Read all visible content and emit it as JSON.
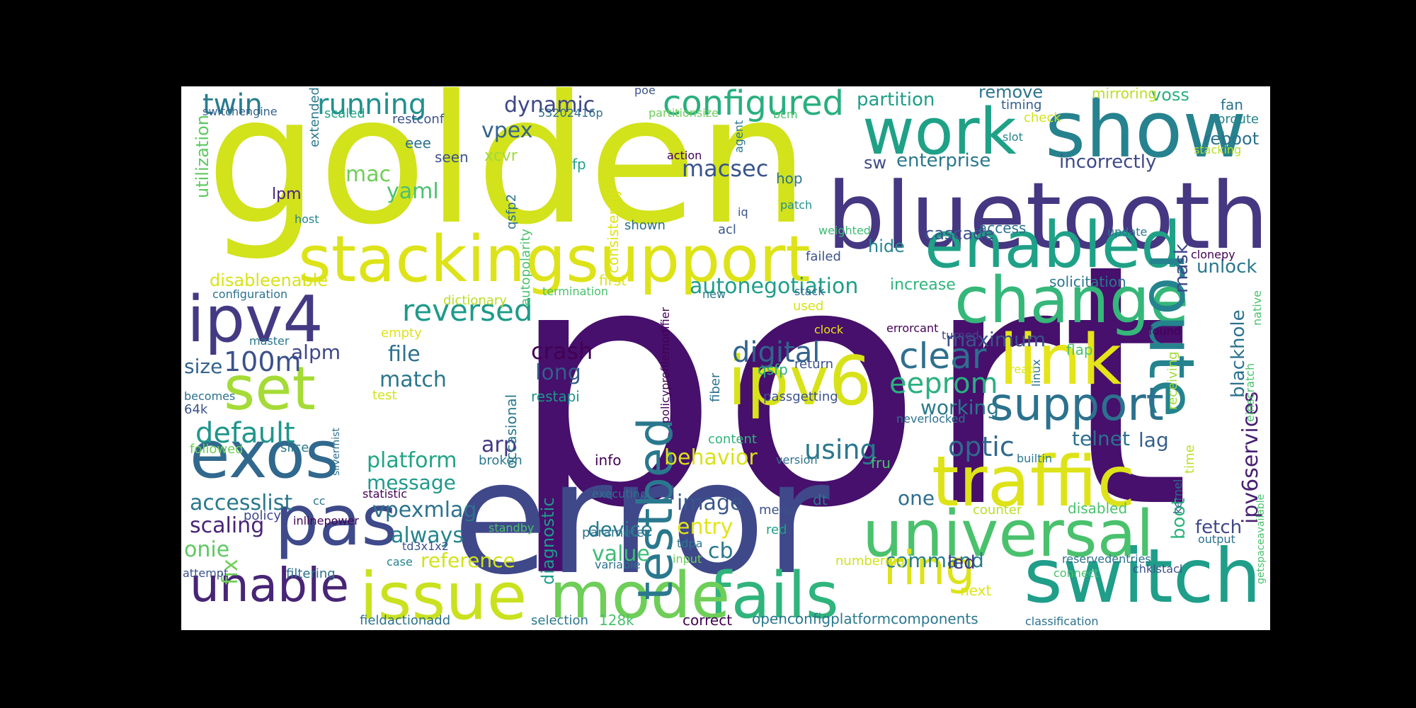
{
  "palette": [
    "#440154",
    "#46327e",
    "#365c8d",
    "#277f8e",
    "#1fa187",
    "#4ac16d",
    "#a0da39",
    "#dde318"
  ],
  "words": [
    {
      "text": "port",
      "color": "#46106c"
    },
    {
      "text": "golden",
      "color": "#d2e21b"
    },
    {
      "text": "error",
      "color": "#3f4889"
    },
    {
      "text": "bluetooth",
      "color": "#453781"
    },
    {
      "text": "show",
      "color": "#26828e"
    },
    {
      "text": "switch",
      "color": "#1f9e89"
    },
    {
      "text": "stackingsupport",
      "color": "#dde318"
    },
    {
      "text": "fails",
      "color": "#2fb47c"
    },
    {
      "text": "mode",
      "color": "#6ece58"
    },
    {
      "text": "traffic",
      "color": "#dde318"
    },
    {
      "text": "universal",
      "color": "#4ac16d"
    },
    {
      "text": "work",
      "color": "#1fa187"
    },
    {
      "text": "change",
      "color": "#35b779"
    },
    {
      "text": "enabled",
      "color": "#1fa187"
    },
    {
      "text": "route",
      "color": "#25838e"
    },
    {
      "text": "link",
      "color": "#e5e419"
    },
    {
      "text": "ipv6",
      "color": "#d8e219"
    },
    {
      "text": "issue",
      "color": "#cae11f"
    },
    {
      "text": "pas",
      "color": "#3e4a89"
    },
    {
      "text": "exos",
      "color": "#31688e"
    },
    {
      "text": "ipv4",
      "color": "#443a83"
    },
    {
      "text": "set",
      "color": "#a5db36"
    },
    {
      "text": "unable",
      "color": "#482576"
    },
    {
      "text": "ring",
      "color": "#dde318"
    },
    {
      "text": "testbed",
      "color": "#2a788e"
    },
    {
      "text": "support",
      "color": "#2c718e"
    },
    {
      "text": "configured",
      "color": "#29af7f"
    },
    {
      "text": "reversed",
      "color": "#1e9b8a"
    },
    {
      "text": "digital",
      "color": "#33638d"
    },
    {
      "text": "clear",
      "color": "#2e6f8e"
    },
    {
      "text": "default",
      "color": "#1f968b"
    },
    {
      "text": "running",
      "color": "#21908d"
    },
    {
      "text": "twin",
      "color": "#287c8e"
    },
    {
      "text": "100m",
      "color": "#3b528b"
    },
    {
      "text": "optic",
      "color": "#31688e"
    },
    {
      "text": "ipv6services",
      "color": "#482173"
    },
    {
      "text": "eeprom",
      "color": "#2ab07f"
    },
    {
      "text": "using",
      "color": "#2a788e"
    },
    {
      "text": "crash",
      "color": "#440154"
    },
    {
      "text": "long",
      "color": "#365c8d"
    },
    {
      "text": "match",
      "color": "#2a768e"
    },
    {
      "text": "file",
      "color": "#2d718e"
    },
    {
      "text": "autonegotiation",
      "color": "#1f9e89"
    },
    {
      "text": "mac",
      "color": "#6ece58"
    },
    {
      "text": "yaml",
      "color": "#4ac16d"
    },
    {
      "text": "vpex",
      "color": "#33628d"
    },
    {
      "text": "dynamic",
      "color": "#3f4788"
    },
    {
      "text": "macsec",
      "color": "#39558c"
    },
    {
      "text": "platform",
      "color": "#20a486"
    },
    {
      "text": "message",
      "color": "#1f9a8a"
    },
    {
      "text": "arp",
      "color": "#453882"
    },
    {
      "text": "behavior",
      "color": "#d8e219"
    },
    {
      "text": "vpexmlag",
      "color": "#2c738e"
    },
    {
      "text": "always",
      "color": "#25848e"
    },
    {
      "text": "image",
      "color": "#39568c"
    },
    {
      "text": "device",
      "color": "#287d8e"
    },
    {
      "text": "value",
      "color": "#3dbc74"
    },
    {
      "text": "entry",
      "color": "#e2e418"
    },
    {
      "text": "cb",
      "color": "#2a788e"
    },
    {
      "text": "reference",
      "color": "#d2e21b"
    },
    {
      "text": "command",
      "color": "#287d8e"
    },
    {
      "text": "accesslist",
      "color": "#2a788e"
    },
    {
      "text": "scaling",
      "color": "#482475"
    },
    {
      "text": "onie",
      "color": "#5ec962"
    },
    {
      "text": "fix",
      "color": "#6ece58"
    },
    {
      "text": "alpm",
      "color": "#3f4788"
    },
    {
      "text": "size",
      "color": "#33638d"
    },
    {
      "text": "maximum",
      "color": "#3b528b"
    },
    {
      "text": "working",
      "color": "#2a788e"
    },
    {
      "text": "telnet",
      "color": "#2c718e"
    },
    {
      "text": "lag",
      "color": "#35608d"
    },
    {
      "text": "one",
      "color": "#2e6e8e"
    },
    {
      "text": "led",
      "color": "#453781"
    },
    {
      "text": "boot",
      "color": "#2fb47c"
    },
    {
      "text": "fetch",
      "color": "#3f4788"
    },
    {
      "text": "mask",
      "color": "#3f4788"
    },
    {
      "text": "unlock",
      "color": "#2a788e"
    },
    {
      "text": "blackhole",
      "color": "#2c718e"
    },
    {
      "text": "enterprise",
      "color": "#2a788e"
    },
    {
      "text": "incorrectly",
      "color": "#3e4989"
    },
    {
      "text": "partition",
      "color": "#1f9e89"
    },
    {
      "text": "remove",
      "color": "#2c738e"
    },
    {
      "text": "voss",
      "color": "#2ab07f"
    },
    {
      "text": "reboot",
      "color": "#2c718e"
    },
    {
      "text": "cascade",
      "color": "#3b528b"
    },
    {
      "text": "hide",
      "color": "#25858e"
    },
    {
      "text": "sw",
      "color": "#3e4a89"
    },
    {
      "text": "increase",
      "color": "#2fb47c"
    },
    {
      "text": "solicitation",
      "color": "#2a788e"
    },
    {
      "text": "disableenable",
      "color": "#d8e219"
    },
    {
      "text": "utilization",
      "color": "#5ec962"
    },
    {
      "text": "diagnostic",
      "color": "#1f9a8a"
    },
    {
      "text": "occasional",
      "color": "#2a788e"
    },
    {
      "text": "restapi",
      "color": "#1f968b"
    },
    {
      "text": "qsfp2",
      "color": "#2c718e"
    },
    {
      "text": "xcvr",
      "color": "#a0da39"
    },
    {
      "text": "seen",
      "color": "#3b528b"
    },
    {
      "text": "eee",
      "color": "#2c718e"
    },
    {
      "text": "lpm",
      "color": "#482475"
    },
    {
      "text": "extended",
      "color": "#2a788e"
    },
    {
      "text": "scaled",
      "color": "#20a386"
    },
    {
      "text": "restconf",
      "color": "#3b528b"
    },
    {
      "text": "switchengine",
      "color": "#33638d"
    },
    {
      "text": "53202416p",
      "color": "#2e6e8e"
    },
    {
      "text": "partitionsize",
      "color": "#6ece58"
    },
    {
      "text": "bcm",
      "color": "#4ac16d"
    },
    {
      "text": "poe",
      "color": "#3b528b"
    },
    {
      "text": "mirroring",
      "color": "#bade28"
    },
    {
      "text": "timing",
      "color": "#365c8d"
    },
    {
      "text": "check",
      "color": "#d2e21b"
    },
    {
      "text": "slot",
      "color": "#25838e"
    },
    {
      "text": "fan",
      "color": "#2c718e"
    },
    {
      "text": "iproute",
      "color": "#25838e"
    },
    {
      "text": "stacking",
      "color": "#bade28"
    },
    {
      "text": "action",
      "color": "#440154"
    },
    {
      "text": "agent",
      "color": "#2a788e"
    },
    {
      "text": "consistently",
      "color": "#dde318"
    },
    {
      "text": "autopolarity",
      "color": "#4ac16d"
    },
    {
      "text": "fp",
      "color": "#1f9e89"
    },
    {
      "text": "hop",
      "color": "#2c728e"
    },
    {
      "text": "iq",
      "color": "#3b528b"
    },
    {
      "text": "patch",
      "color": "#21918c"
    },
    {
      "text": "shown",
      "color": "#2d708e"
    },
    {
      "text": "acl",
      "color": "#38588c"
    },
    {
      "text": "weighted",
      "color": "#3dbc74"
    },
    {
      "text": "access",
      "color": "#2c718e"
    },
    {
      "text": "update",
      "color": "#2a788e"
    },
    {
      "text": "failed",
      "color": "#3b528b"
    },
    {
      "text": "clonepy",
      "color": "#440154"
    },
    {
      "text": "native",
      "color": "#4ac16d"
    },
    {
      "text": "host",
      "color": "#25848e"
    },
    {
      "text": "configuration",
      "color": "#2c728e"
    },
    {
      "text": "termination",
      "color": "#4ac16d"
    },
    {
      "text": "dictionary",
      "color": "#bade28"
    },
    {
      "text": "first",
      "color": "#dde318"
    },
    {
      "text": "policyprofilemodifier",
      "color": "#440154"
    },
    {
      "text": "new",
      "color": "#2a788e"
    },
    {
      "text": "stack",
      "color": "#31688e"
    },
    {
      "text": "used",
      "color": "#d8e219"
    },
    {
      "text": "clock",
      "color": "#e5e419"
    },
    {
      "text": "errorcant",
      "color": "#440154"
    },
    {
      "text": "turned",
      "color": "#3f4788"
    },
    {
      "text": "found",
      "color": "#440154"
    },
    {
      "text": "flap",
      "color": "#4ac16d"
    },
    {
      "text": "receiving",
      "color": "#a0da39"
    },
    {
      "text": "linux",
      "color": "#2c728e"
    },
    {
      "text": "read",
      "color": "#dde318"
    },
    {
      "text": "einscratch",
      "color": "#4ac16d"
    },
    {
      "text": "master",
      "color": "#2a788e"
    },
    {
      "text": "empty",
      "color": "#dde318"
    },
    {
      "text": "test",
      "color": "#d2e21b"
    },
    {
      "text": "becomes",
      "color": "#2c718e"
    },
    {
      "text": "64k",
      "color": "#3b528b"
    },
    {
      "text": "followed",
      "color": "#6ece58"
    },
    {
      "text": "slice",
      "color": "#2a788e"
    },
    {
      "text": "silvermist",
      "color": "#2c718e"
    },
    {
      "text": "qsfp",
      "color": "#2ab07f"
    },
    {
      "text": "return",
      "color": "#3b528b"
    },
    {
      "text": "fiber",
      "color": "#2c718e"
    },
    {
      "text": "passgetting",
      "color": "#3b528b"
    },
    {
      "text": "neverlocked",
      "color": "#2c718e"
    },
    {
      "text": "content",
      "color": "#2fb47c"
    },
    {
      "text": "version",
      "color": "#2c718e"
    },
    {
      "text": "builtin",
      "color": "#2a788e"
    },
    {
      "text": "time",
      "color": "#bade28"
    },
    {
      "text": "info",
      "color": "#440154"
    },
    {
      "text": "broken",
      "color": "#2a788e"
    },
    {
      "text": "fru",
      "color": "#4ac16d"
    },
    {
      "text": "kernel",
      "color": "#31688e"
    },
    {
      "text": "statistic",
      "color": "#440154"
    },
    {
      "text": "cc",
      "color": "#2a788e"
    },
    {
      "text": "executing",
      "color": "#2c718e"
    },
    {
      "text": "dt",
      "color": "#2a788e"
    },
    {
      "text": "disabled",
      "color": "#4ac16d"
    },
    {
      "text": "counter",
      "color": "#bade28"
    },
    {
      "text": "getspaceavailable",
      "color": "#4ac16d"
    },
    {
      "text": "policy",
      "color": "#3f4788"
    },
    {
      "text": "inlinepower",
      "color": "#440154"
    },
    {
      "text": "menu",
      "color": "#3b528b"
    },
    {
      "text": "red",
      "color": "#1f9e89"
    },
    {
      "text": "standby",
      "color": "#4ac16d"
    },
    {
      "text": "parameter",
      "color": "#2c718e"
    },
    {
      "text": "tdpa",
      "color": "#2a788e"
    },
    {
      "text": "output",
      "color": "#2c718e"
    },
    {
      "text": "td3x1x2",
      "color": "#3b528b"
    },
    {
      "text": "case",
      "color": "#25838e"
    },
    {
      "text": "variable",
      "color": "#2c718e"
    },
    {
      "text": "input",
      "color": "#6ece58"
    },
    {
      "text": "numbering",
      "color": "#d2e21b"
    },
    {
      "text": "reservedentries",
      "color": "#2c718e"
    },
    {
      "text": "chklstacl",
      "color": "#3b528b"
    },
    {
      "text": "attempt",
      "color": "#3b528b"
    },
    {
      "text": "filtering",
      "color": "#2c718e"
    },
    {
      "text": "connect",
      "color": "#4ac16d"
    },
    {
      "text": "next",
      "color": "#dde318"
    },
    {
      "text": "fieldactionadd",
      "color": "#2c718e"
    },
    {
      "text": "selection",
      "color": "#2a788e"
    },
    {
      "text": "128k",
      "color": "#4ac16d"
    },
    {
      "text": "correct",
      "color": "#440154"
    },
    {
      "text": "openconfigplatformcomponents",
      "color": "#2a788e"
    },
    {
      "text": "classification",
      "color": "#2c718e"
    }
  ]
}
